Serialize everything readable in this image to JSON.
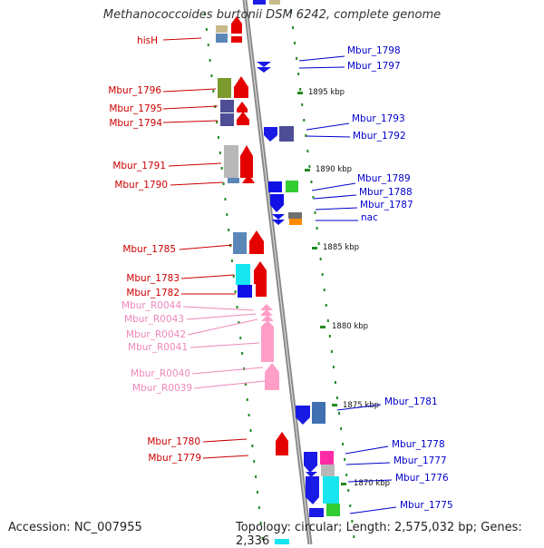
{
  "title": "Methanococcoides burtonii DSM 6242, complete genome",
  "footer": {
    "accession": "Accession: NC_007955",
    "summary": "Topology: circular; Length: 2,575,032 bp; Genes: 2,336"
  },
  "colors": {
    "left_label": "#cc0000",
    "right_label": "#0000cc",
    "rna_label": "#ee88bb",
    "tick": "#228b22",
    "backbone": "#909090"
  },
  "scale_labels": [
    "1895 kbp",
    "1890 kbp",
    "1885 kbp",
    "1880 kbp",
    "1875 kbp",
    "1870 kbp"
  ],
  "left_genes": [
    "hisH",
    "Mbur_1796",
    "Mbur_1795",
    "Mbur_1794",
    "Mbur_1791",
    "Mbur_1790",
    "Mbur_1785",
    "Mbur_1783",
    "Mbur_1782",
    "Mbur_1780",
    "Mbur_1779"
  ],
  "rna_genes": [
    "Mbur_R0044",
    "Mbur_R0043",
    "Mbur_R0042",
    "Mbur_R0041",
    "Mbur_R0040",
    "Mbur_R0039"
  ],
  "right_genes": [
    "Mbur_1798",
    "Mbur_1797",
    "Mbur_1793",
    "Mbur_1792",
    "Mbur_1789",
    "Mbur_1788",
    "Mbur_1787",
    "nac",
    "Mbur_1781",
    "Mbur_1778",
    "Mbur_1777",
    "Mbur_1776",
    "Mbur_1775"
  ]
}
